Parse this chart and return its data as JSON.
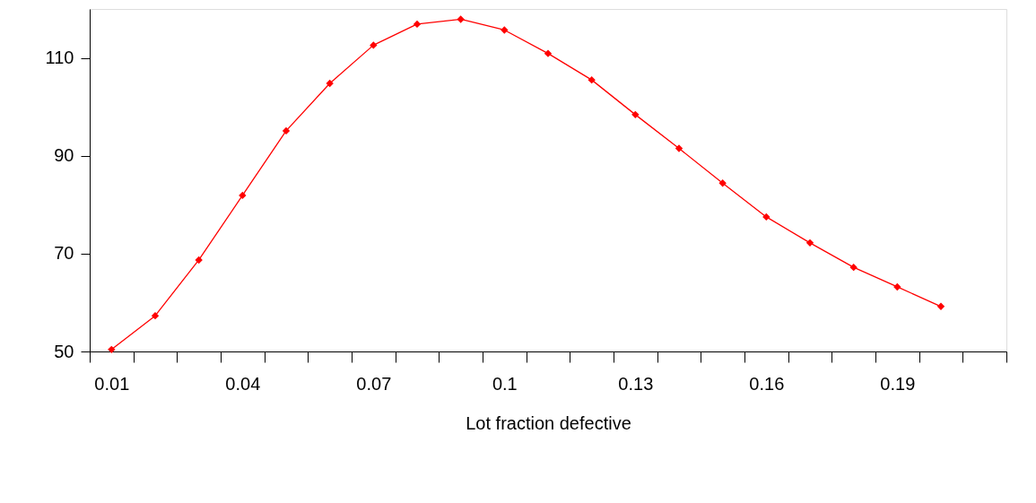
{
  "chart_data": {
    "type": "line",
    "xlabel": "Lot fraction defective",
    "categories": [
      "0.01",
      null,
      null,
      "0.04",
      null,
      null,
      "0.07",
      null,
      null,
      "0.1",
      null,
      null,
      "0.13",
      null,
      null,
      "0.16",
      null,
      null,
      "0.19",
      null,
      null
    ],
    "series": [
      {
        "color": "#ff0000",
        "values": [
          50.4,
          57.3,
          68.7,
          81.9,
          95.1,
          104.8,
          112.6,
          116.9,
          117.9,
          115.7,
          110.9,
          105.5,
          98.4,
          91.5,
          84.4,
          77.5,
          72.2,
          67.2,
          63.2,
          59.2,
          null
        ]
      }
    ],
    "ylim": [
      50,
      120
    ],
    "yticks": [
      50,
      70,
      90,
      110
    ],
    "grid": false,
    "marker": "diamond",
    "line_style": "solid"
  }
}
